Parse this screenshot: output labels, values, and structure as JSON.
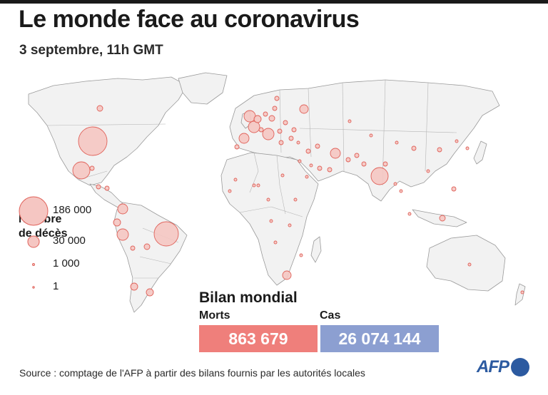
{
  "title": "Le monde face au coronavirus",
  "subtitle": "3 septembre, 11h GMT",
  "legend": {
    "title_line1": "Nombre",
    "title_line2": "de décès",
    "items": [
      {
        "label": "186 000",
        "deaths": 186000
      },
      {
        "label": "30 000",
        "deaths": 30000
      },
      {
        "label": "1 000",
        "deaths": 1000
      },
      {
        "label": "1",
        "deaths": 1
      }
    ]
  },
  "bilan": {
    "title": "Bilan mondial",
    "morts_label": "Morts",
    "morts_value": "863 679",
    "cas_label": "Cas",
    "cas_value": "26 074 144"
  },
  "source": "Source : comptage de l'AFP à partir des bilans fournis par les autorités locales",
  "logo_text": "AFP",
  "colors": {
    "bubble_fill": "#f5c6c2",
    "bubble_stroke": "#e0625a",
    "land": "#f2f2f2",
    "border": "#9a9a9a",
    "morts_box": "#ef7f7b",
    "cas_box": "#8c9fd1",
    "afp_blue": "#2c5aa0"
  }
}
